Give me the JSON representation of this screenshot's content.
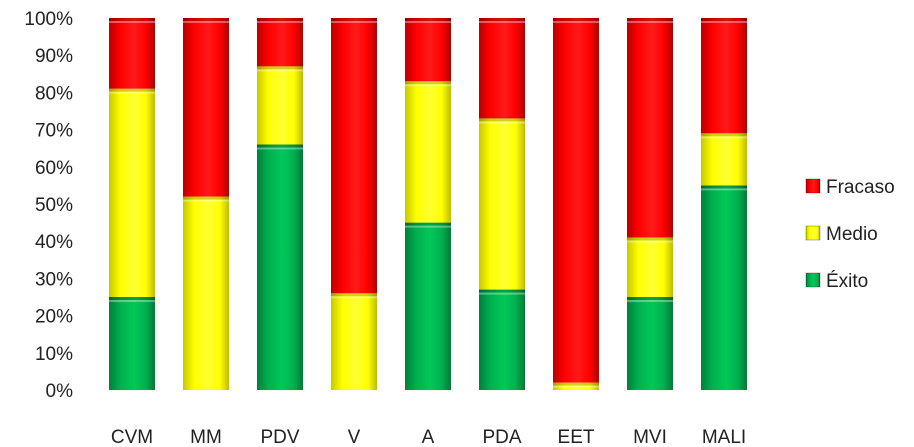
{
  "chart_data": {
    "type": "bar",
    "stacked": "percent",
    "categories": [
      "CVM",
      "MM",
      "PDV",
      "V",
      "A",
      "PDA",
      "EET",
      "MVI",
      "MALI"
    ],
    "series": [
      {
        "name": "Éxito",
        "color": "#00b050",
        "values": [
          25,
          0,
          66,
          0,
          45,
          27,
          0,
          25,
          55
        ]
      },
      {
        "name": "Medio",
        "color": "#ffff00",
        "values": [
          56,
          52,
          21,
          26,
          38,
          46,
          2,
          16,
          14
        ]
      },
      {
        "name": "Fracaso",
        "color": "#ff0000",
        "values": [
          19,
          48,
          13,
          74,
          17,
          27,
          98,
          59,
          31
        ]
      }
    ],
    "y_ticks": [
      "0%",
      "10%",
      "20%",
      "30%",
      "40%",
      "50%",
      "60%",
      "70%",
      "80%",
      "90%",
      "100%"
    ],
    "ylim": [
      0,
      100
    ],
    "legend": {
      "position": "right",
      "order": [
        "Fracaso",
        "Medio",
        "Éxito"
      ]
    },
    "grid": false
  }
}
